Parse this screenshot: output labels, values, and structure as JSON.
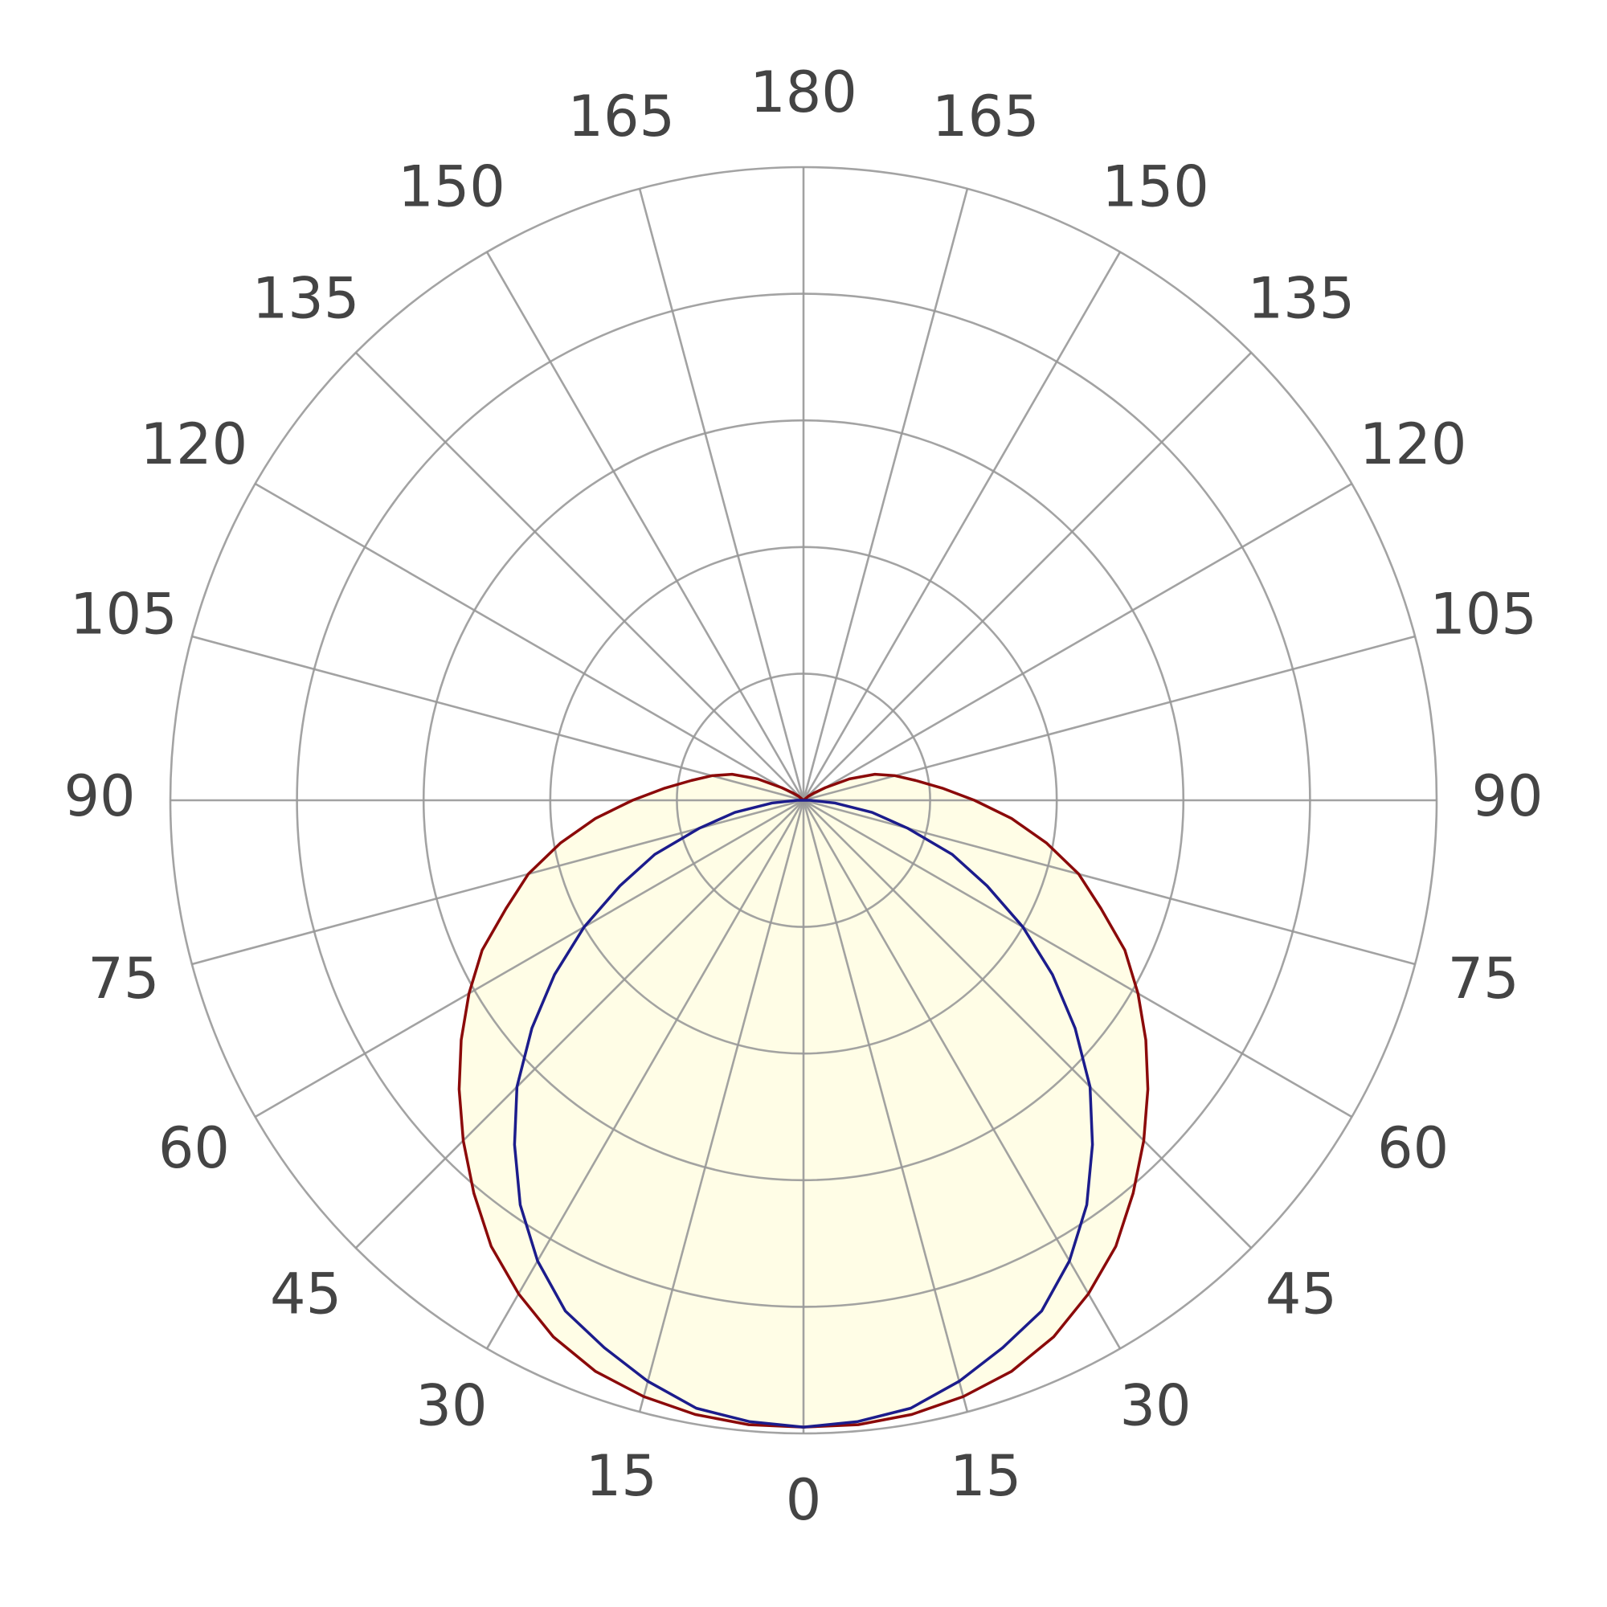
{
  "chart_data": {
    "type": "polar",
    "theta": [
      0,
      5,
      10,
      15,
      20,
      25,
      30,
      35,
      40,
      45,
      50,
      55,
      60,
      65,
      70,
      75,
      80,
      85,
      90,
      95,
      100,
      105,
      110,
      115,
      120,
      125,
      130,
      135,
      140,
      145,
      150,
      155,
      160,
      165,
      170,
      175,
      180
    ],
    "series": [
      {
        "color": "#8b0a0a",
        "values": [
          0.99,
          0.99,
          0.985,
          0.975,
          0.96,
          0.935,
          0.9,
          0.86,
          0.81,
          0.76,
          0.71,
          0.66,
          0.61,
          0.56,
          0.5,
          0.45,
          0.39,
          0.33,
          0.27,
          0.22,
          0.18,
          0.15,
          0.12,
          0.08,
          0.04,
          0.02,
          0.01,
          0,
          0,
          0,
          0,
          0,
          0,
          0,
          0,
          0,
          0
        ]
      },
      {
        "color": "#1c1c8c",
        "values": [
          0.99,
          0.985,
          0.975,
          0.95,
          0.92,
          0.89,
          0.84,
          0.78,
          0.71,
          0.64,
          0.56,
          0.48,
          0.4,
          0.32,
          0.25,
          0.17,
          0.11,
          0.05,
          0.01,
          0,
          0,
          0,
          0,
          0,
          0,
          0,
          0,
          0,
          0,
          0,
          0,
          0,
          0,
          0,
          0,
          0,
          0
        ]
      }
    ],
    "fill": "#fffde6",
    "rlim": [
      0,
      1
    ],
    "rticks": [
      0.2,
      0.4,
      0.6,
      0.8,
      1
    ],
    "thetaticks": [
      0,
      15,
      30,
      45,
      60,
      75,
      90,
      105,
      120,
      135,
      150,
      165,
      180
    ],
    "grid": true
  }
}
